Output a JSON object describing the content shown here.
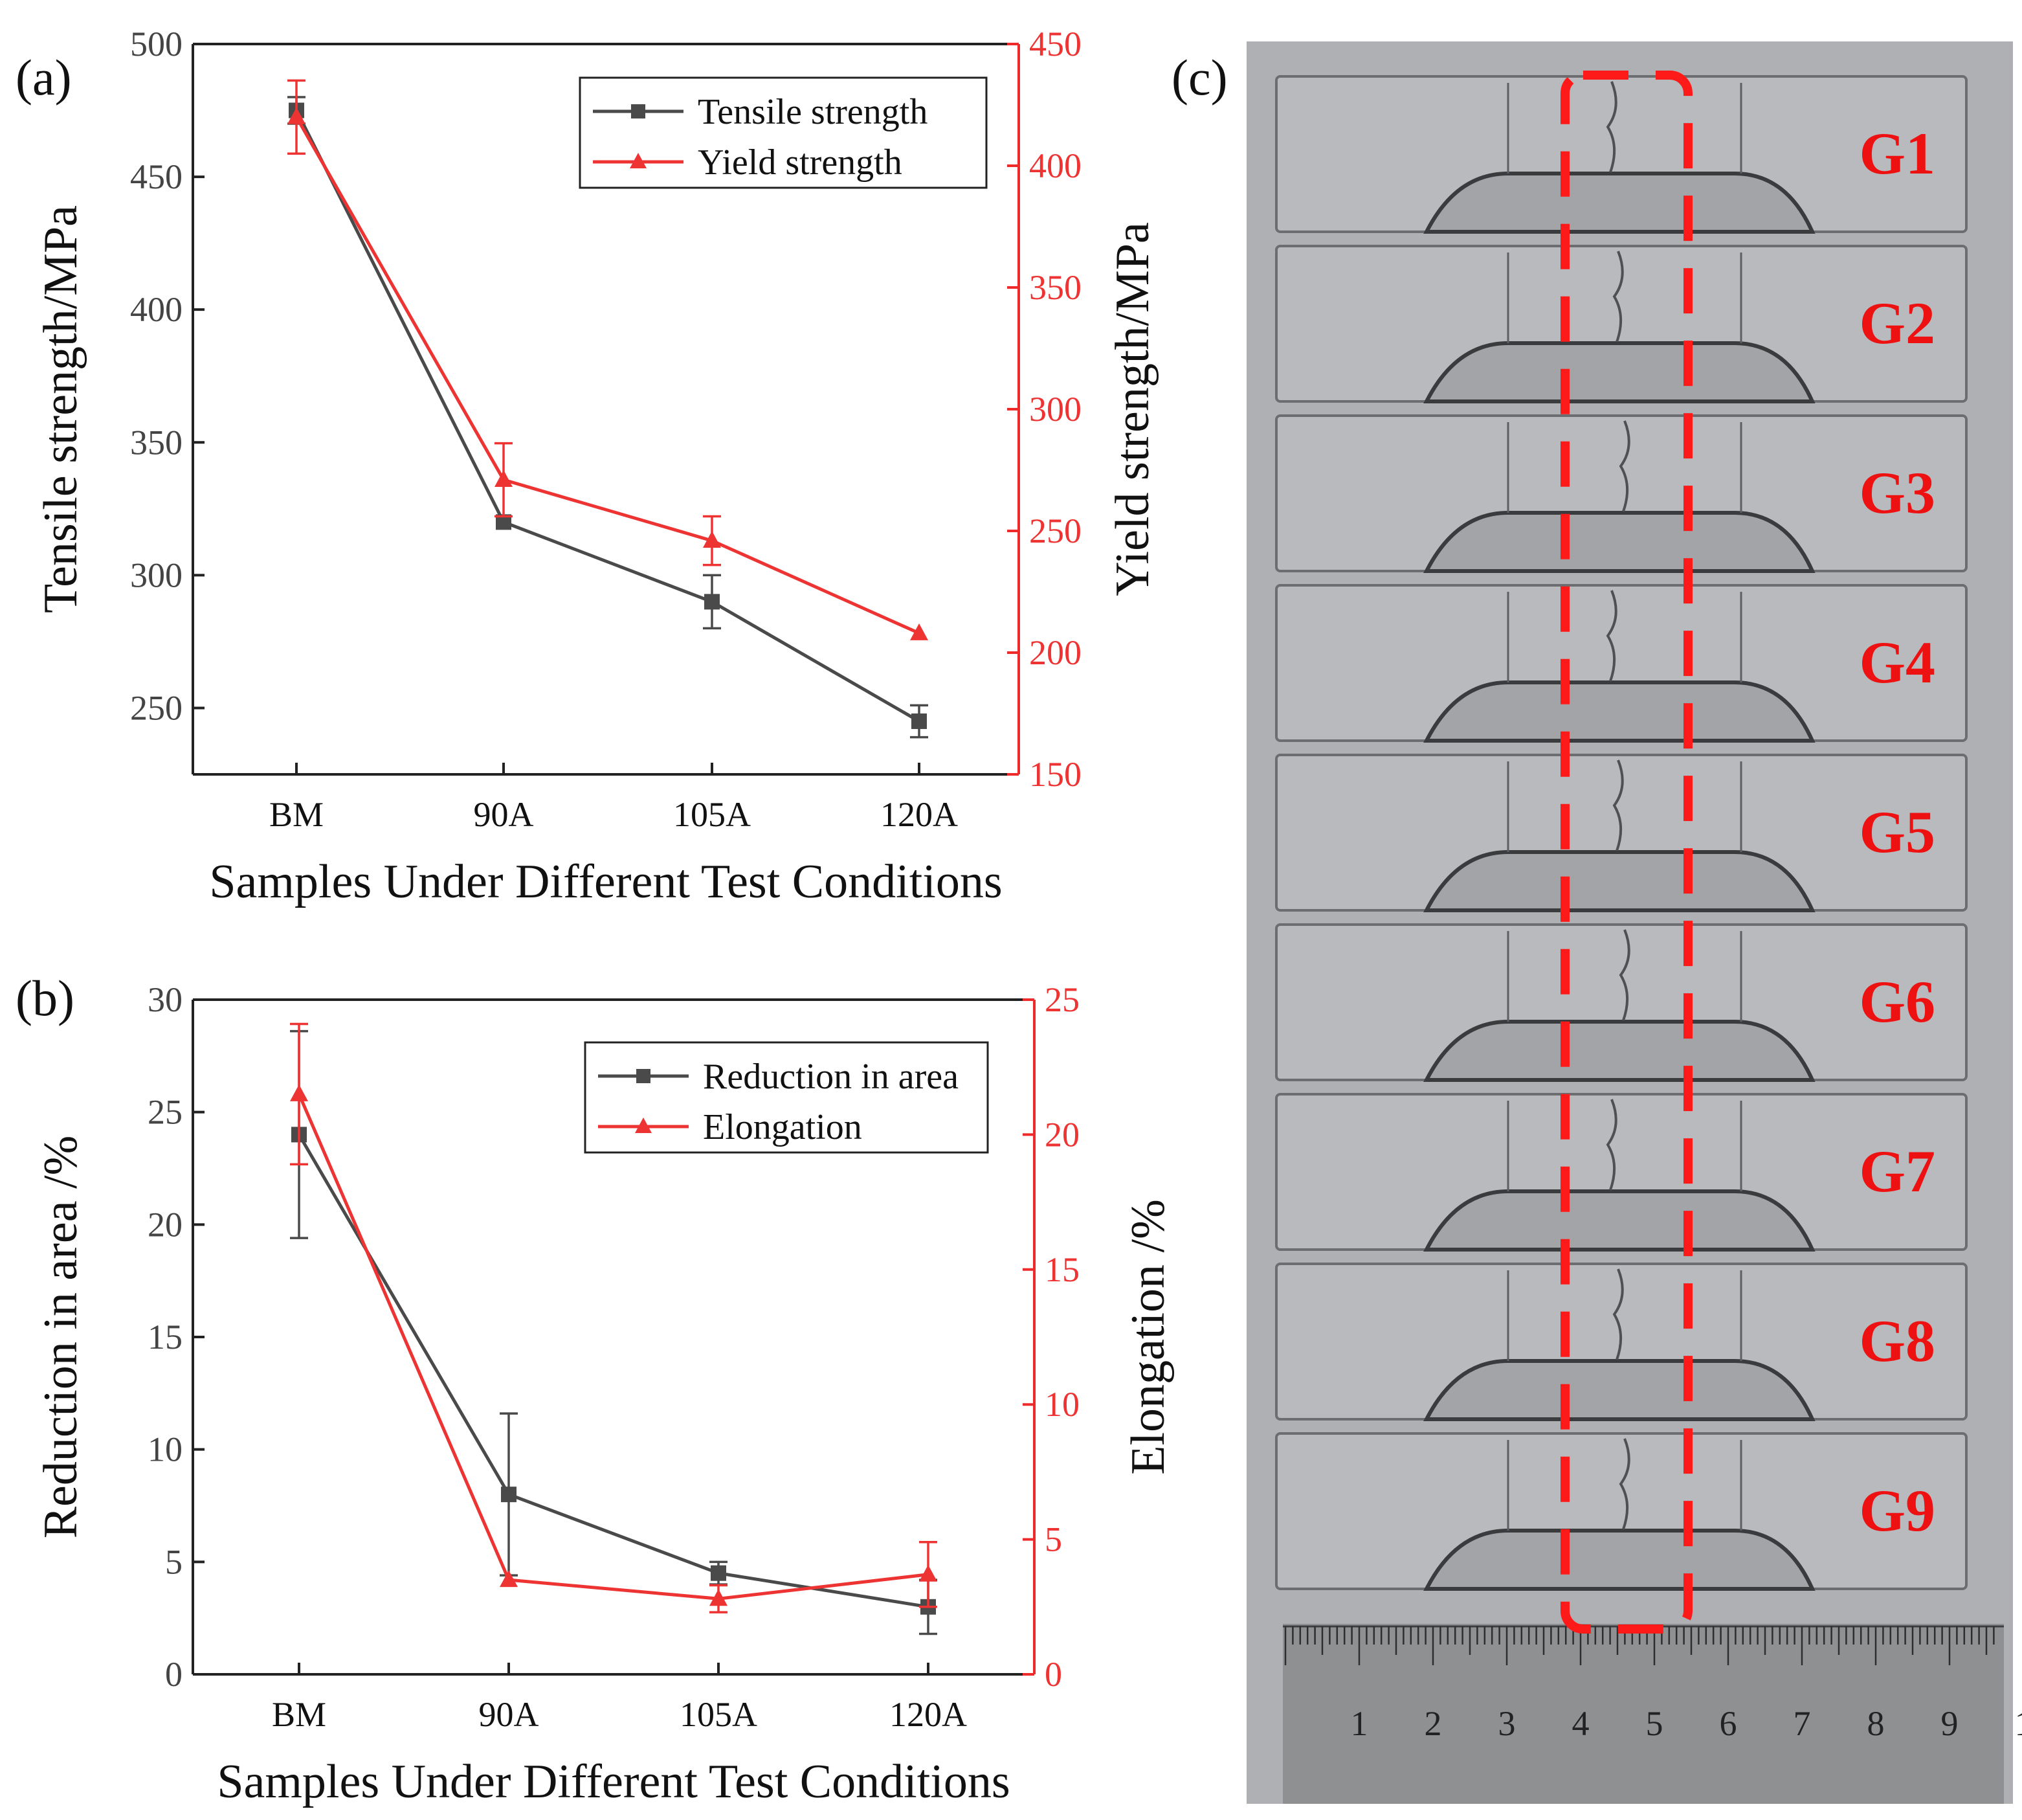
{
  "panel_labels": [
    "(a)",
    "(b)",
    "(c)"
  ],
  "colors": {
    "series1": "#4a4a4a",
    "series2": "#ee3333",
    "highlight": "#ff1a1a",
    "metal": "#b9babd",
    "ruler": "#8f9092"
  },
  "chart_data": [
    {
      "type": "line",
      "panel": "(a)",
      "categories": [
        "BM",
        "90A",
        "105A",
        "120A"
      ],
      "xlabel": "Samples Under Different Test Conditions",
      "ylabel": "Tensile strength/MPa",
      "ylabel_right": "Yield strength/MPa",
      "ylim": [
        225,
        500
      ],
      "ylim_right": [
        150,
        450
      ],
      "yticks": [
        250,
        300,
        350,
        400,
        450,
        500
      ],
      "yticks_right": [
        150,
        200,
        250,
        300,
        350,
        400,
        450
      ],
      "legend_position": "top-right",
      "series": [
        {
          "name": "Tensile strength",
          "axis": "left",
          "marker": "square",
          "values": [
            475,
            320,
            290,
            245
          ],
          "errors": [
            5,
            0,
            10,
            6
          ]
        },
        {
          "name": "Yield strength",
          "axis": "right",
          "marker": "triangle",
          "values": [
            420,
            271,
            246,
            208
          ],
          "errors": [
            15,
            15,
            10,
            0
          ]
        }
      ]
    },
    {
      "type": "line",
      "panel": "(b)",
      "categories": [
        "BM",
        "90A",
        "105A",
        "120A"
      ],
      "xlabel": "Samples Under Different Test Conditions",
      "ylabel": "Reduction in area /%",
      "ylabel_right": "Elongation /%",
      "ylim": [
        0,
        30
      ],
      "ylim_right": [
        0,
        25
      ],
      "yticks": [
        0,
        5,
        10,
        15,
        20,
        25,
        30
      ],
      "yticks_right": [
        0,
        5,
        10,
        15,
        20,
        25
      ],
      "legend_position": "top-right",
      "series": [
        {
          "name": "Reduction in area",
          "axis": "left",
          "marker": "square",
          "values": [
            24,
            8,
            4.5,
            3
          ],
          "errors": [
            4.6,
            3.6,
            0.5,
            1.2
          ]
        },
        {
          "name": "Elongation",
          "axis": "right",
          "marker": "triangle",
          "values": [
            21.5,
            3.5,
            2.8,
            3.7
          ],
          "errors": [
            2.6,
            0,
            0.5,
            1.2
          ]
        }
      ]
    }
  ],
  "photo": {
    "specimen_labels": [
      "G1",
      "G2",
      "G3",
      "G4",
      "G5",
      "G6",
      "G7",
      "G8",
      "G9"
    ],
    "ruler_labels": [
      "1",
      "2",
      "3",
      "4",
      "5",
      "6",
      "7",
      "8",
      "9",
      "1"
    ]
  }
}
